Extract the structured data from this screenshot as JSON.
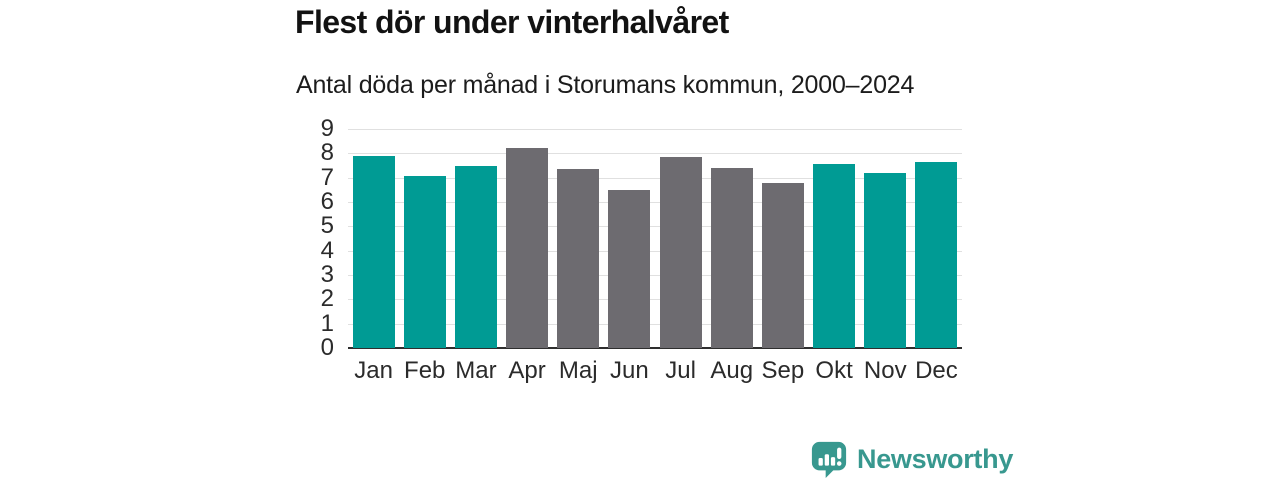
{
  "chart_data": {
    "type": "bar",
    "title": "Flest dör under vinterhalvåret",
    "subtitle": "Antal döda per månad i Storumans kommun, 2000–2024",
    "categories": [
      "Jan",
      "Feb",
      "Mar",
      "Apr",
      "Maj",
      "Jun",
      "Jul",
      "Aug",
      "Sep",
      "Okt",
      "Nov",
      "Dec"
    ],
    "values": [
      7.9,
      7.05,
      7.5,
      8.2,
      7.35,
      6.5,
      7.85,
      7.4,
      6.8,
      7.55,
      7.2,
      7.65
    ],
    "bar_color_roles": [
      "winter",
      "winter",
      "winter",
      "summer",
      "summer",
      "summer",
      "summer",
      "summer",
      "summer",
      "winter",
      "winter",
      "winter"
    ],
    "colors": {
      "winter": "#009b94",
      "summer": "#6d6b70",
      "gridline": "#e0e0e0",
      "axis_line": "#2e2e2e"
    },
    "xlabel": "",
    "ylabel": "",
    "ylim": [
      0,
      9
    ],
    "yticks": [
      0,
      1,
      2,
      3,
      4,
      5,
      6,
      7,
      8,
      9
    ],
    "grid": true,
    "legend": "none"
  },
  "footer": {
    "brand_label": "Newsworthy",
    "brand_color": "#38988f",
    "logo_icon": "bar-chart-speech-bubble-icon"
  }
}
